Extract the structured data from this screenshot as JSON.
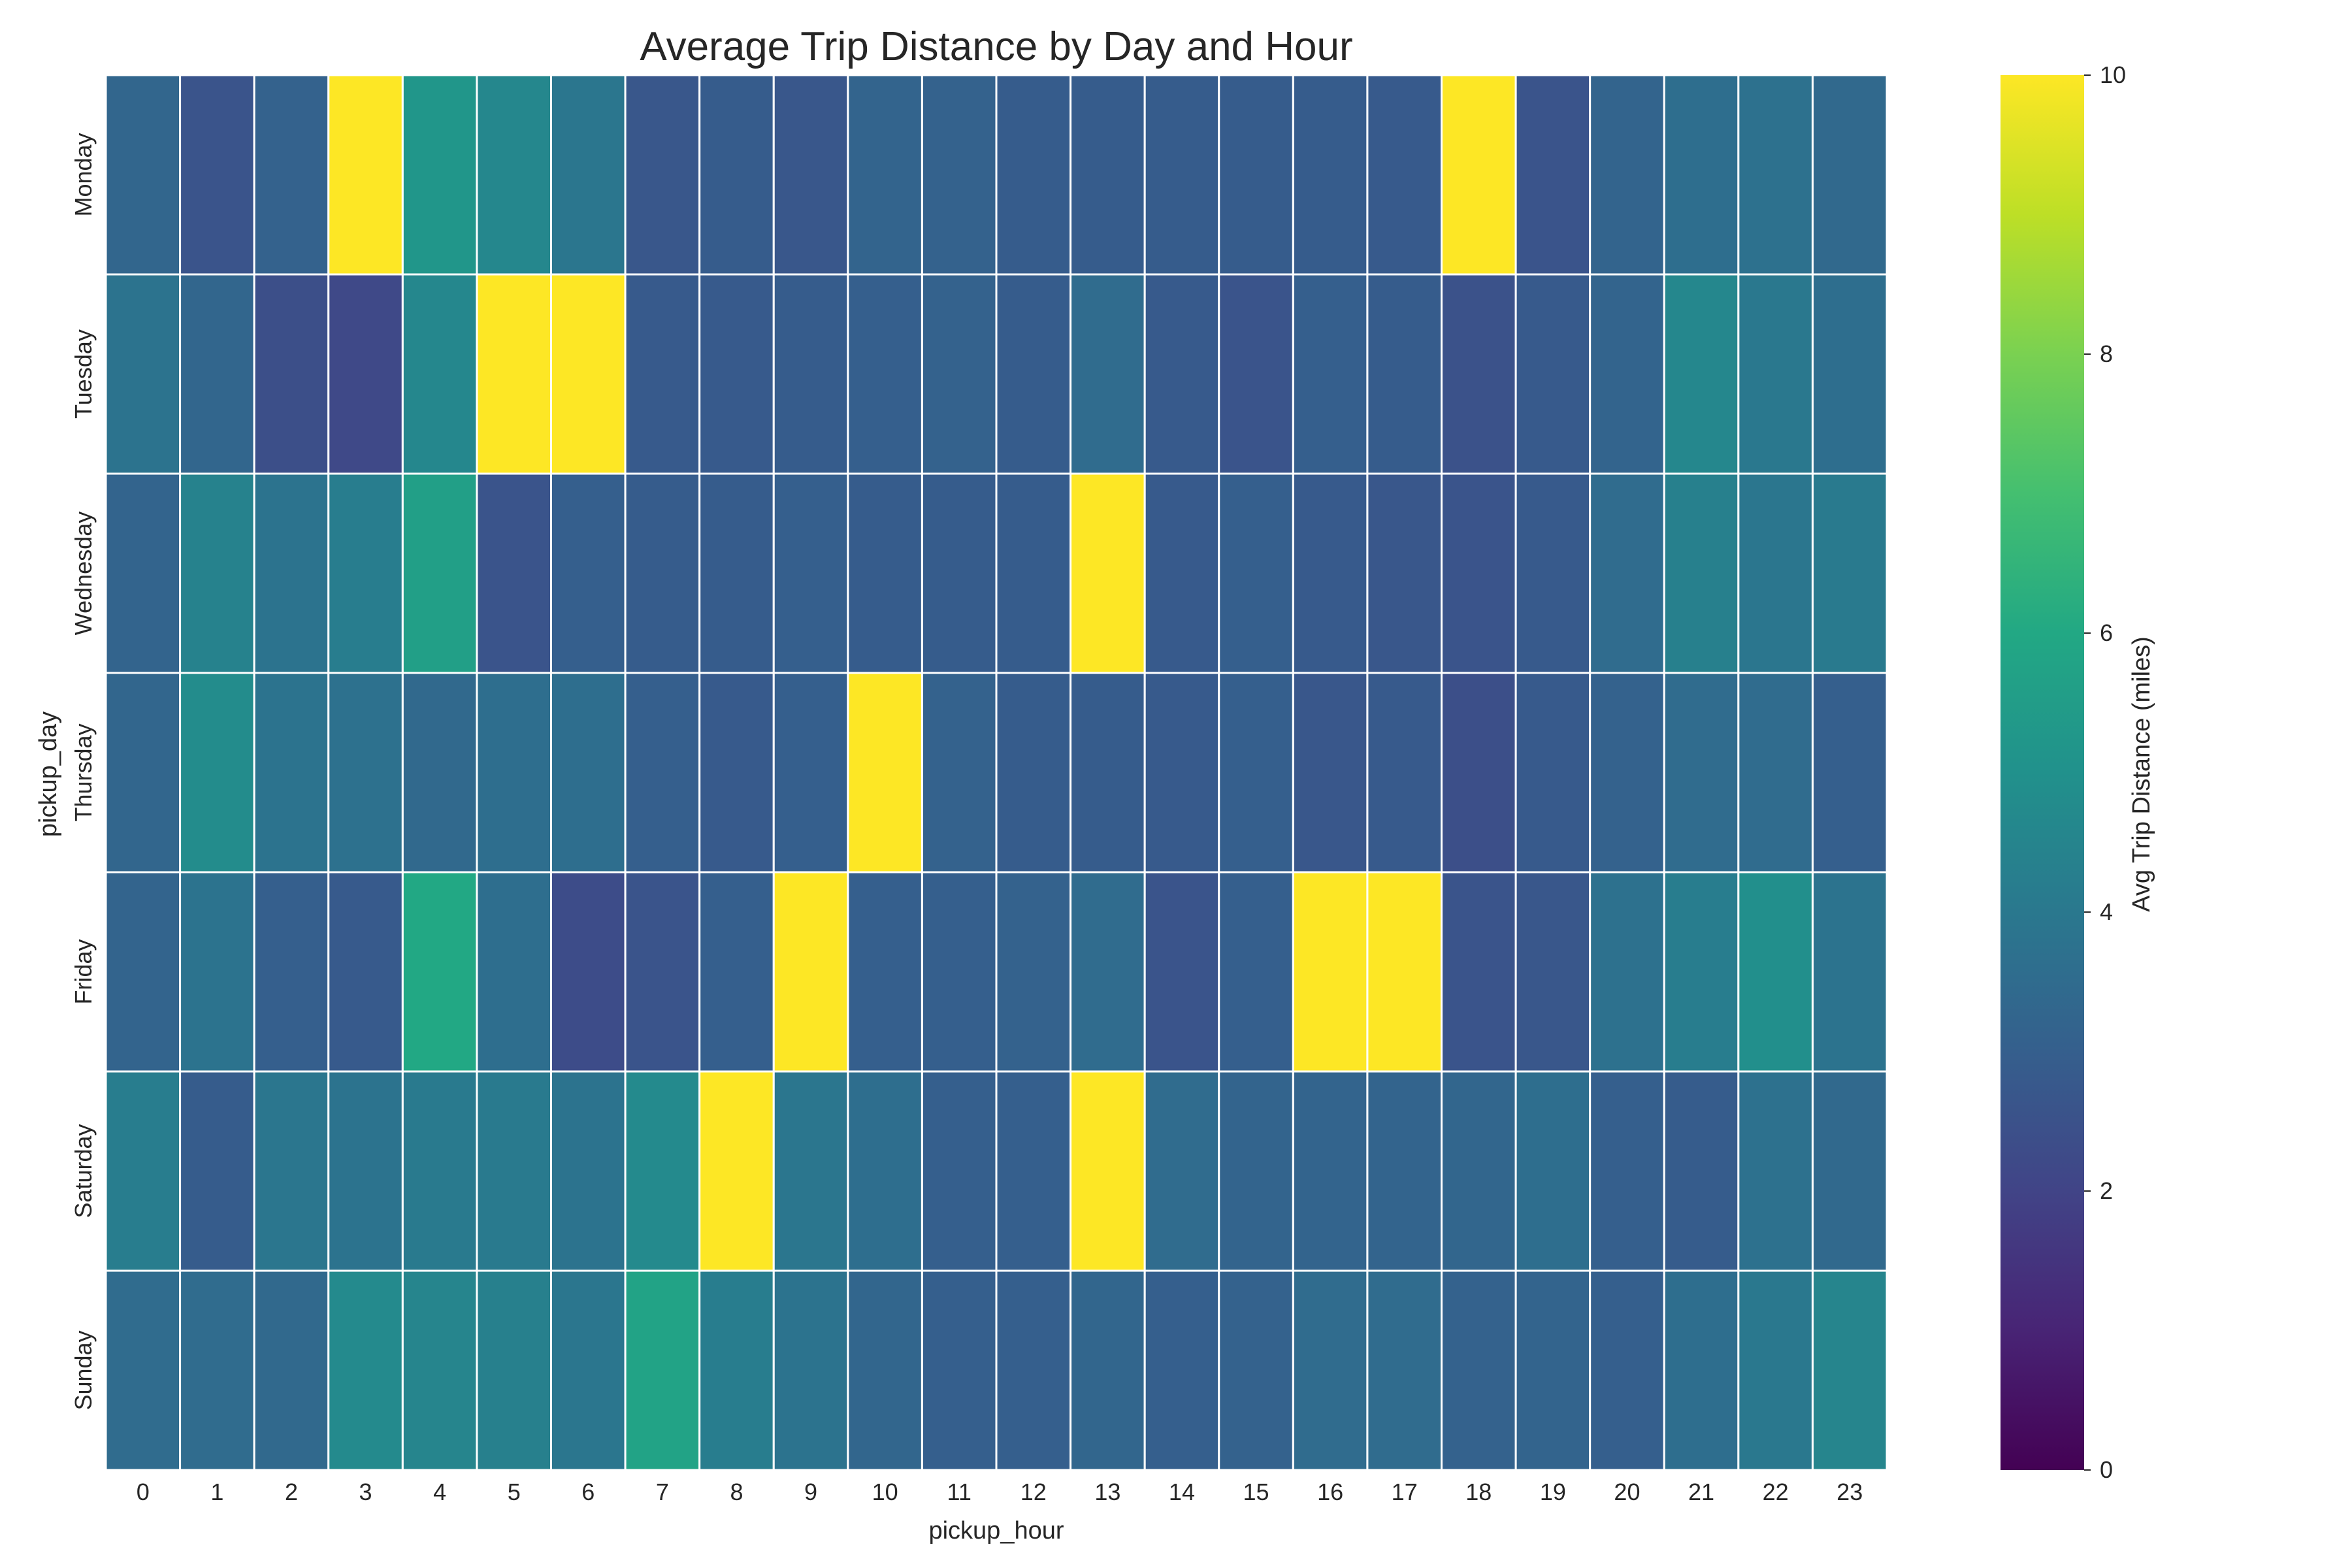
{
  "chart_data": {
    "type": "heatmap",
    "title": "Average Trip Distance by Day and Hour",
    "xlabel": "pickup_hour",
    "ylabel": "pickup_day",
    "x": [
      0,
      1,
      2,
      3,
      4,
      5,
      6,
      7,
      8,
      9,
      10,
      11,
      12,
      13,
      14,
      15,
      16,
      17,
      18,
      19,
      20,
      21,
      22,
      23
    ],
    "y": [
      "Monday",
      "Tuesday",
      "Wednesday",
      "Thursday",
      "Friday",
      "Saturday",
      "Sunday"
    ],
    "colorbar": {
      "label": "Avg Trip Distance (miles)",
      "range": [
        0,
        10
      ],
      "ticks": [
        0,
        2,
        4,
        6,
        8,
        10
      ],
      "colormap": "viridis"
    },
    "grid": false,
    "values": [
      [
        3.3,
        2.6,
        3.1,
        10.0,
        5.2,
        4.6,
        3.9,
        2.7,
        2.9,
        2.7,
        3.2,
        3.1,
        2.9,
        2.9,
        2.9,
        2.9,
        2.9,
        2.8,
        10.0,
        2.6,
        3.2,
        3.6,
        3.7,
        3.4
      ],
      [
        3.8,
        3.3,
        2.4,
        2.2,
        4.6,
        10.0,
        10.0,
        2.8,
        2.8,
        2.9,
        3.0,
        3.1,
        2.9,
        3.5,
        2.8,
        2.6,
        3.0,
        2.9,
        2.5,
        2.8,
        3.2,
        4.6,
        4.0,
        3.6
      ],
      [
        3.2,
        4.4,
        3.8,
        4.2,
        5.6,
        2.6,
        3.0,
        2.9,
        2.9,
        3.0,
        2.9,
        2.9,
        2.9,
        10.0,
        2.8,
        3.0,
        2.8,
        2.7,
        2.6,
        2.8,
        3.5,
        4.3,
        3.9,
        4.1
      ],
      [
        3.3,
        4.8,
        3.8,
        3.7,
        3.4,
        3.6,
        3.6,
        3.0,
        2.8,
        3.0,
        10.0,
        3.1,
        2.9,
        2.9,
        2.8,
        3.0,
        2.7,
        2.8,
        2.4,
        2.8,
        3.1,
        3.5,
        3.5,
        3.0
      ],
      [
        3.2,
        3.8,
        3.0,
        2.8,
        6.0,
        3.6,
        2.3,
        2.6,
        3.0,
        10.0,
        3.0,
        3.0,
        3.1,
        3.5,
        2.6,
        3.0,
        10.0,
        10.0,
        2.6,
        2.7,
        3.7,
        4.2,
        4.9,
        3.8
      ],
      [
        4.2,
        2.9,
        3.9,
        3.8,
        4.1,
        4.1,
        3.8,
        4.7,
        10.0,
        3.9,
        3.6,
        3.0,
        3.0,
        10.0,
        3.5,
        3.2,
        3.2,
        3.2,
        3.3,
        3.6,
        3.0,
        2.9,
        3.7,
        3.4
      ],
      [
        3.5,
        3.5,
        3.4,
        4.7,
        4.5,
        4.3,
        3.9,
        5.8,
        4.2,
        3.8,
        3.3,
        3.0,
        3.0,
        3.3,
        3.0,
        3.1,
        3.5,
        3.5,
        3.1,
        3.2,
        3.0,
        3.6,
        4.0,
        4.5
      ]
    ]
  }
}
